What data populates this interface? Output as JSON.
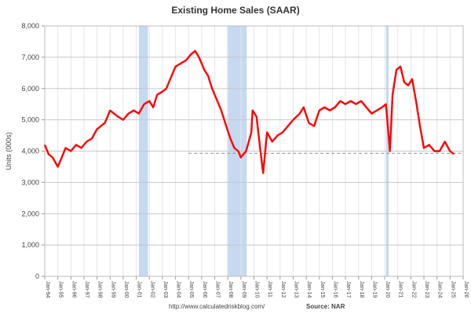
{
  "chart_data": {
    "type": "line",
    "title": "Existing Home Sales (SAAR)",
    "xlabel": "",
    "ylabel": "Units (000s)",
    "ylim": [
      0,
      8000
    ],
    "yticks": [
      0,
      1000,
      2000,
      3000,
      4000,
      5000,
      6000,
      7000,
      8000
    ],
    "ytick_labels": [
      "0",
      "1,000",
      "2,000",
      "3,000",
      "4,000",
      "5,000",
      "6,000",
      "7,000",
      "8,000"
    ],
    "xlim": [
      1994,
      2026
    ],
    "xtick_labels": [
      "Jan-94",
      "Jan-95",
      "Jan-96",
      "Jan-97",
      "Jan-98",
      "Jan-99",
      "Jan-00",
      "Jan-01",
      "Jan-02",
      "Jan-03",
      "Jan-04",
      "Jan-05",
      "Jan-06",
      "Jan-07",
      "Jan-08",
      "Jan-09",
      "Jan-10",
      "Jan-11",
      "Jan-12",
      "Jan-13",
      "Jan-14",
      "Jan-15",
      "Jan-16",
      "Jan-17",
      "Jan-18",
      "Jan-19",
      "Jan-20",
      "Jan-21",
      "Jan-22",
      "Jan-23",
      "Jan-24",
      "Jan-25",
      "Jan-26"
    ],
    "grid": true,
    "legend": "none",
    "series": [
      {
        "name": "Existing Home Sales",
        "color": "#ff0000",
        "x": [
          1994.0,
          1994.3,
          1994.6,
          1995.0,
          1995.3,
          1995.6,
          1996.0,
          1996.4,
          1996.8,
          1997.2,
          1997.6,
          1998.0,
          1998.3,
          1998.6,
          1999.0,
          1999.3,
          1999.6,
          2000.0,
          2000.4,
          2000.8,
          2001.2,
          2001.6,
          2002.0,
          2002.3,
          2002.6,
          2003.0,
          2003.3,
          2003.6,
          2004.0,
          2004.4,
          2004.8,
          2005.2,
          2005.5,
          2005.8,
          2006.2,
          2006.5,
          2006.8,
          2007.2,
          2007.5,
          2007.8,
          2008.2,
          2008.5,
          2008.8,
          2009.0,
          2009.4,
          2009.8,
          2009.9,
          2010.2,
          2010.5,
          2010.7,
          2011.0,
          2011.4,
          2011.8,
          2012.2,
          2012.6,
          2013.0,
          2013.5,
          2013.8,
          2014.2,
          2014.6,
          2015.0,
          2015.4,
          2015.8,
          2016.2,
          2016.6,
          2017.0,
          2017.4,
          2017.8,
          2018.2,
          2018.6,
          2019.0,
          2019.4,
          2019.8,
          2020.1,
          2020.4,
          2020.6,
          2020.9,
          2021.2,
          2021.5,
          2021.8,
          2022.1,
          2022.4,
          2022.7,
          2023.0,
          2023.4,
          2023.8,
          2024.2,
          2024.6,
          2025.0,
          2025.3
        ],
        "values": [
          4200,
          3900,
          3800,
          3500,
          3800,
          4100,
          4000,
          4200,
          4100,
          4300,
          4400,
          4700,
          4800,
          4900,
          5300,
          5200,
          5100,
          5000,
          5200,
          5300,
          5200,
          5500,
          5600,
          5400,
          5800,
          5900,
          6000,
          6300,
          6700,
          6800,
          6900,
          7100,
          7200,
          7000,
          6600,
          6400,
          6000,
          5600,
          5300,
          4900,
          4400,
          4100,
          4000,
          3800,
          4000,
          4600,
          5300,
          5100,
          4000,
          3300,
          4600,
          4300,
          4500,
          4600,
          4800,
          5000,
          5200,
          5400,
          4900,
          4800,
          5300,
          5400,
          5300,
          5400,
          5600,
          5500,
          5600,
          5500,
          5600,
          5400,
          5200,
          5300,
          5400,
          5500,
          4000,
          5800,
          6600,
          6700,
          6200,
          6100,
          6300,
          5600,
          4800,
          4100,
          4200,
          4000,
          4000,
          4300,
          4000,
          3900
        ]
      }
    ],
    "shaded_regions": [
      {
        "label": "2001 recession",
        "start": 2001.2,
        "end": 2001.9
      },
      {
        "label": "2008-09 recession",
        "start": 2007.95,
        "end": 2009.45
      },
      {
        "label": "2020 recession",
        "start": 2020.1,
        "end": 2020.3
      }
    ],
    "reference_lines": [
      {
        "style": "dashed",
        "y": 3930,
        "x_start": 2005,
        "x_end": 2026,
        "color": "#999999"
      }
    ],
    "annotations": [
      "http://www.calculatedriskblog.com/",
      "Source: NAR"
    ]
  },
  "footer": {
    "url": "http://www.calculatedriskblog.com/",
    "source": "Source: NAR"
  }
}
